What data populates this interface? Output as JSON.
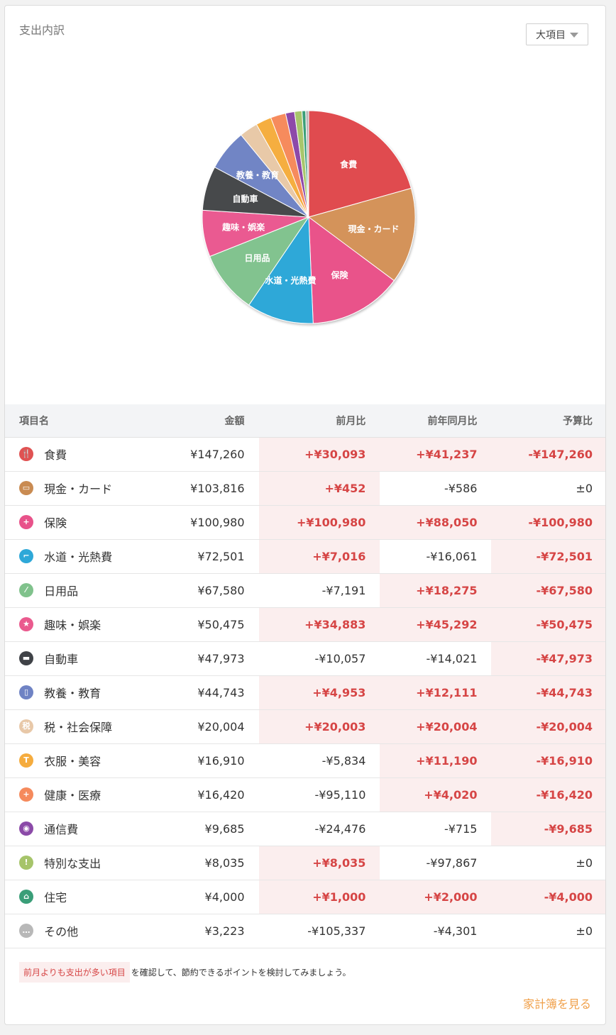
{
  "title": "支出内訳",
  "dropdown_label": "大項目",
  "table": {
    "headers": [
      "項目名",
      "金額",
      "前月比",
      "前年同月比",
      "予算比"
    ],
    "rows": [
      {
        "name": "食費",
        "icon": "fork-knife-icon",
        "color": "#e05252",
        "glyph": "🍴",
        "amount": "¥147,260",
        "mom": "+¥30,093",
        "mom_pos": true,
        "yoy": "+¥41,237",
        "yoy_pos": true,
        "budget": "-¥147,260",
        "budget_pos": true
      },
      {
        "name": "現金・カード",
        "icon": "wallet-icon",
        "color": "#c98b52",
        "glyph": "▭",
        "amount": "¥103,816",
        "mom": "+¥452",
        "mom_pos": true,
        "yoy": "-¥586",
        "yoy_pos": false,
        "budget": "±0",
        "budget_pos": false
      },
      {
        "name": "保険",
        "icon": "medical-kit-icon",
        "color": "#e8528a",
        "glyph": "+",
        "amount": "¥100,980",
        "mom": "+¥100,980",
        "mom_pos": true,
        "yoy": "+¥88,050",
        "yoy_pos": true,
        "budget": "-¥100,980",
        "budget_pos": true
      },
      {
        "name": "水道・光熱費",
        "icon": "faucet-icon",
        "color": "#2ea8d8",
        "glyph": "⌐",
        "amount": "¥72,501",
        "mom": "+¥7,016",
        "mom_pos": true,
        "yoy": "-¥16,061",
        "yoy_pos": false,
        "budget": "-¥72,501",
        "budget_pos": true
      },
      {
        "name": "日用品",
        "icon": "leaf-icon",
        "color": "#80c28c",
        "glyph": "⁄",
        "amount": "¥67,580",
        "mom": "-¥7,191",
        "mom_pos": false,
        "yoy": "+¥18,275",
        "yoy_pos": true,
        "budget": "-¥67,580",
        "budget_pos": true
      },
      {
        "name": "趣味・娯楽",
        "icon": "star-icon",
        "color": "#ea5a8e",
        "glyph": "★",
        "amount": "¥50,475",
        "mom": "+¥34,883",
        "mom_pos": true,
        "yoy": "+¥45,292",
        "yoy_pos": true,
        "budget": "-¥50,475",
        "budget_pos": true
      },
      {
        "name": "自動車",
        "icon": "car-icon",
        "color": "#3f4247",
        "glyph": "▬",
        "amount": "¥47,973",
        "mom": "-¥10,057",
        "mom_pos": false,
        "yoy": "-¥14,021",
        "yoy_pos": false,
        "budget": "-¥47,973",
        "budget_pos": true
      },
      {
        "name": "教養・教育",
        "icon": "book-icon",
        "color": "#6f83c4",
        "glyph": "▯",
        "amount": "¥44,743",
        "mom": "+¥4,953",
        "mom_pos": true,
        "yoy": "+¥12,111",
        "yoy_pos": true,
        "budget": "-¥44,743",
        "budget_pos": true
      },
      {
        "name": "税・社会保障",
        "icon": "tax-icon",
        "color": "#e8c8a8",
        "glyph": "税",
        "amount": "¥20,004",
        "mom": "+¥20,003",
        "mom_pos": true,
        "yoy": "+¥20,004",
        "yoy_pos": true,
        "budget": "-¥20,004",
        "budget_pos": true
      },
      {
        "name": "衣服・美容",
        "icon": "shirt-icon",
        "color": "#f5ac3e",
        "glyph": "T",
        "amount": "¥16,910",
        "mom": "-¥5,834",
        "mom_pos": false,
        "yoy": "+¥11,190",
        "yoy_pos": true,
        "budget": "-¥16,910",
        "budget_pos": true
      },
      {
        "name": "健康・医療",
        "icon": "medical-cross-icon",
        "color": "#f58a5c",
        "glyph": "+",
        "amount": "¥16,420",
        "mom": "-¥95,110",
        "mom_pos": false,
        "yoy": "+¥4,020",
        "yoy_pos": true,
        "budget": "-¥16,420",
        "budget_pos": true
      },
      {
        "name": "通信費",
        "icon": "antenna-icon",
        "color": "#8b4aa8",
        "glyph": "◉",
        "amount": "¥9,685",
        "mom": "-¥24,476",
        "mom_pos": false,
        "yoy": "-¥715",
        "yoy_pos": false,
        "budget": "-¥9,685",
        "budget_pos": true
      },
      {
        "name": "特別な支出",
        "icon": "exclamation-icon",
        "color": "#a6c46a",
        "glyph": "!",
        "amount": "¥8,035",
        "mom": "+¥8,035",
        "mom_pos": true,
        "yoy": "-¥97,867",
        "yoy_pos": false,
        "budget": "±0",
        "budget_pos": false
      },
      {
        "name": "住宅",
        "icon": "house-icon",
        "color": "#3a9e78",
        "glyph": "⌂",
        "amount": "¥4,000",
        "mom": "+¥1,000",
        "mom_pos": true,
        "yoy": "+¥2,000",
        "yoy_pos": true,
        "budget": "-¥4,000",
        "budget_pos": true
      },
      {
        "name": "その他",
        "icon": "dots-icon",
        "color": "#b8b8b8",
        "glyph": "…",
        "amount": "¥3,223",
        "mom": "-¥105,337",
        "mom_pos": false,
        "yoy": "-¥4,301",
        "yoy_pos": false,
        "budget": "±0",
        "budget_pos": false
      }
    ]
  },
  "chart_data": {
    "type": "pie",
    "categories": [
      "食費",
      "現金・カード",
      "保険",
      "水道・光熱費",
      "日用品",
      "趣味・娯楽",
      "自動車",
      "教養・教育",
      "税・社会保障",
      "衣服・美容",
      "健康・医療",
      "通信費",
      "特別な支出",
      "住宅",
      "その他"
    ],
    "values": [
      147260,
      103816,
      100980,
      72501,
      67580,
      50475,
      47973,
      44743,
      20004,
      16910,
      16420,
      9685,
      8035,
      4000,
      3223
    ],
    "labels_shown": [
      "食費",
      "現金・カード",
      "保険",
      "水道・光熱費",
      "日用品",
      "趣味・娯楽",
      "自動車",
      "教養・教育"
    ],
    "colors": [
      "#e04b50",
      "#d4935a",
      "#e9538a",
      "#2ea8d8",
      "#82c38f",
      "#ea5a91",
      "#46484c",
      "#7185c5",
      "#e8c9a8",
      "#f5ae3f",
      "#f68b5d",
      "#8d4aa9",
      "#a8c66c",
      "#3a9e78",
      "#b9b9b9"
    ]
  },
  "note": {
    "link_text": "前月よりも支出が多い項目",
    "rest_text": "を確認して、節約できるポイントを検討してみましょう。"
  },
  "more_link": "家計簿を見る"
}
